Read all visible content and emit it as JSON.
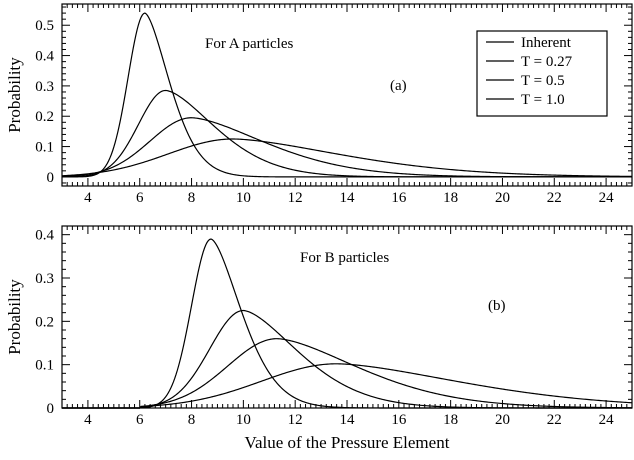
{
  "chart_data": [
    {
      "type": "line",
      "panel_label": "(a)",
      "annotation": "For   A   particles",
      "ylabel": "Probability",
      "xlabel": "",
      "xlim": [
        3,
        25
      ],
      "ylim": [
        -0.03,
        0.57
      ],
      "x_ticks": [
        4,
        6,
        8,
        10,
        12,
        14,
        16,
        18,
        20,
        22,
        24
      ],
      "x_tick_labels": [
        "4",
        "6",
        "8",
        "10",
        "12",
        "14",
        "16",
        "18",
        "20",
        "22",
        "24"
      ],
      "y_ticks": [
        0,
        0.1,
        0.2,
        0.3,
        0.4,
        0.5
      ],
      "y_tick_labels": [
        "0",
        "0.1",
        "0.2",
        "0.3",
        "0.4",
        "0.5"
      ],
      "legend_position": "top-right",
      "series": [
        {
          "name": "Inherent",
          "peak_x": 6.2,
          "peak_y": 0.54,
          "width_left": 0.65,
          "width_right": 0.9,
          "start_x": 3.0
        },
        {
          "name": "T = 0.27",
          "peak_x": 7.0,
          "peak_y": 0.285,
          "width_left": 1.05,
          "width_right": 1.8,
          "start_x": 3.0
        },
        {
          "name": "T = 0.5",
          "peak_x": 8.0,
          "peak_y": 0.195,
          "width_left": 1.6,
          "width_right": 2.7,
          "start_x": 3.0
        },
        {
          "name": "T = 1.0",
          "peak_x": 9.6,
          "peak_y": 0.125,
          "width_left": 2.5,
          "width_right": 4.0,
          "start_x": 3.0
        }
      ]
    },
    {
      "type": "line",
      "panel_label": "(b)",
      "annotation": "For   B   particles",
      "ylabel": "Probability",
      "xlabel": "Value  of  the  Pressure Element",
      "xlim": [
        3,
        25
      ],
      "ylim": [
        0,
        0.42
      ],
      "x_ticks": [
        4,
        6,
        8,
        10,
        12,
        14,
        16,
        18,
        20,
        22,
        24
      ],
      "x_tick_labels": [
        "4",
        "6",
        "8",
        "10",
        "12",
        "14",
        "16",
        "18",
        "20",
        "22",
        "24"
      ],
      "y_ticks": [
        0,
        0.1,
        0.2,
        0.3,
        0.4
      ],
      "y_tick_labels": [
        "0",
        "0.1",
        "0.2",
        "0.3",
        "0.4"
      ],
      "series": [
        {
          "name": "Inherent",
          "peak_x": 8.75,
          "peak_y": 0.39,
          "width_left": 0.75,
          "width_right": 1.1,
          "start_x": 6.0
        },
        {
          "name": "T = 0.27",
          "peak_x": 10.0,
          "peak_y": 0.225,
          "width_left": 1.3,
          "width_right": 2.0,
          "start_x": 6.0
        },
        {
          "name": "T = 0.5",
          "peak_x": 11.3,
          "peak_y": 0.16,
          "width_left": 1.9,
          "width_right": 3.0,
          "start_x": 6.0
        },
        {
          "name": "T = 1.0",
          "peak_x": 13.6,
          "peak_y": 0.102,
          "width_left": 2.9,
          "width_right": 4.6,
          "start_x": 6.0
        }
      ]
    }
  ]
}
